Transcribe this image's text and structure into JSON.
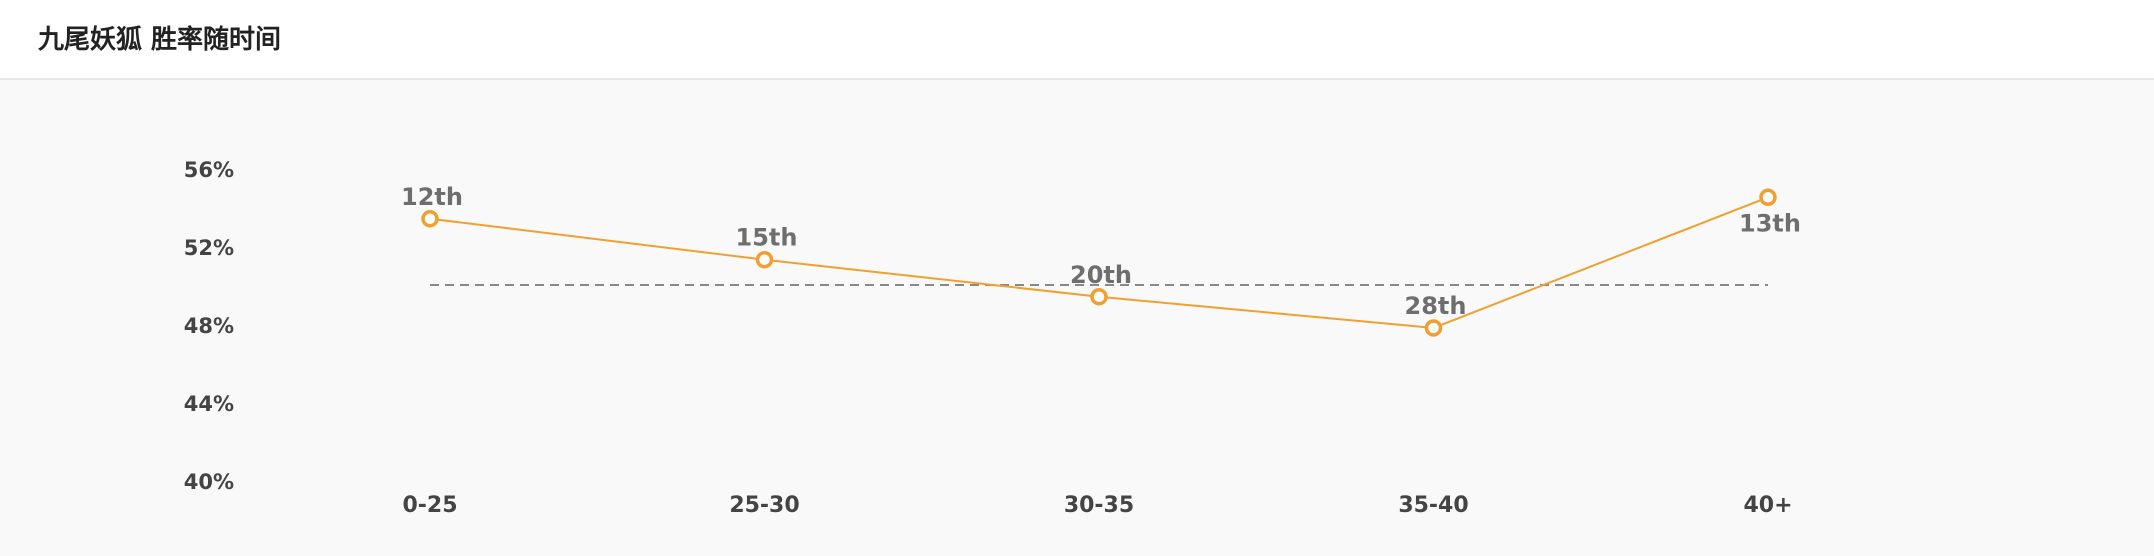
{
  "header": {
    "title": "九尾妖狐 胜率随时间"
  },
  "chart_data": {
    "type": "line",
    "title": "九尾妖狐 胜率随时间",
    "categories": [
      "0-25",
      "25-30",
      "30-35",
      "35-40",
      "40+"
    ],
    "series": [
      {
        "values": [
          53.5,
          51.4,
          49.5,
          47.9,
          54.6
        ],
        "labels": [
          "12th",
          "15th",
          "20th",
          "28th",
          "13th"
        ],
        "color": "#f0a030"
      }
    ],
    "reference_line": {
      "value": 50.1,
      "style": "dashed",
      "color": "#888888"
    },
    "yticks": [
      56,
      52,
      48,
      44,
      40
    ],
    "ytick_labels": [
      "56%",
      "52%",
      "48%",
      "44%",
      "40%"
    ],
    "ylim": [
      40,
      56
    ],
    "grid": false,
    "xlabel": "",
    "ylabel": ""
  }
}
